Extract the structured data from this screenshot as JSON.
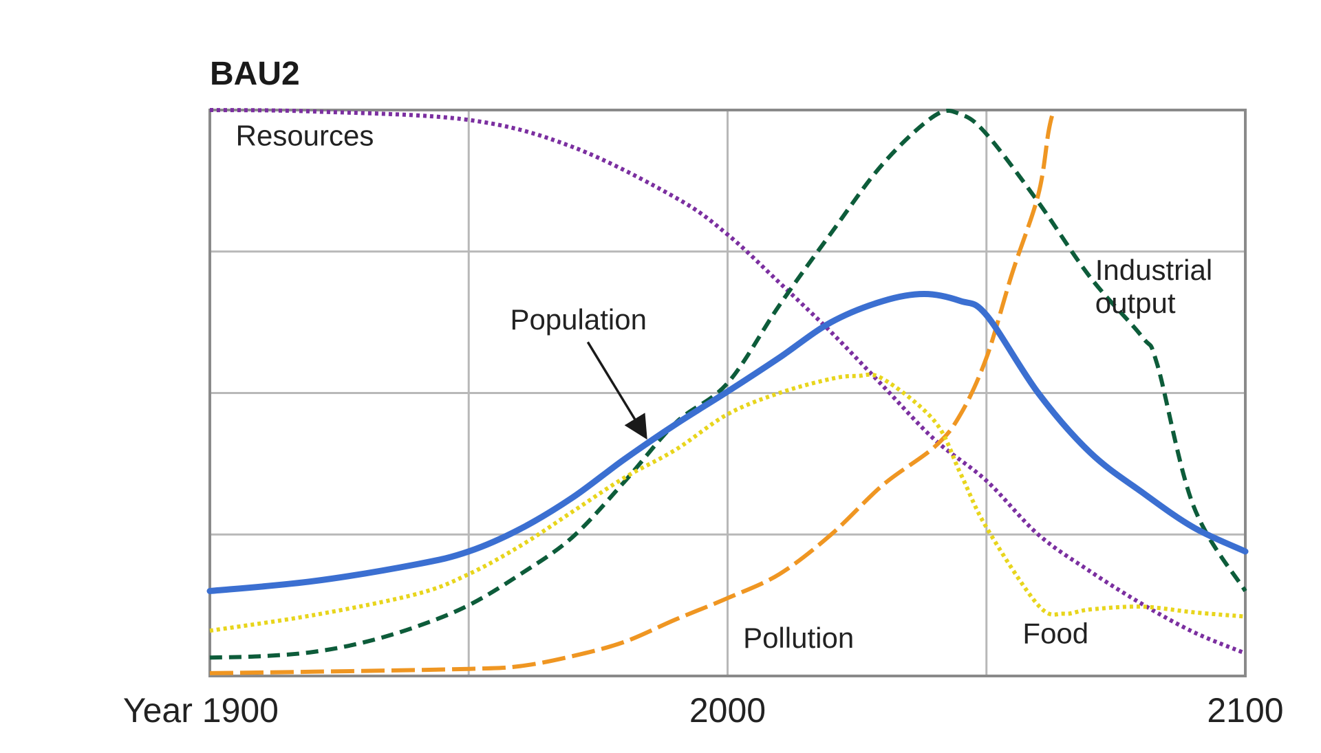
{
  "chart_data": {
    "type": "line",
    "title": "BAU2",
    "xlabel": "",
    "ylabel": "",
    "xlim": [
      1900,
      2100
    ],
    "ylim": [
      0,
      4
    ],
    "grid": true,
    "x_gridlines": [
      1950,
      2000,
      2050
    ],
    "y_gridlines": [
      1,
      2,
      3
    ],
    "x_tick_labels": [
      {
        "value": 1900,
        "text": "Year 1900"
      },
      {
        "value": 2000,
        "text": "2000"
      },
      {
        "value": 2100,
        "text": "2100"
      }
    ],
    "series": [
      {
        "name": "Resources",
        "color": "#7b2fa0",
        "style": "dotted",
        "label_at": [
          1905,
          3.75
        ],
        "points": [
          [
            1900,
            4.0
          ],
          [
            1920,
            3.99
          ],
          [
            1950,
            3.93
          ],
          [
            1970,
            3.74
          ],
          [
            1990,
            3.38
          ],
          [
            2000,
            3.12
          ],
          [
            2010,
            2.78
          ],
          [
            2020,
            2.43
          ],
          [
            2030,
            2.05
          ],
          [
            2040,
            1.67
          ],
          [
            2050,
            1.38
          ],
          [
            2060,
            1.0
          ],
          [
            2070,
            0.74
          ],
          [
            2080,
            0.51
          ],
          [
            2090,
            0.31
          ],
          [
            2100,
            0.16
          ]
        ]
      },
      {
        "name": "Industrial output",
        "color": "#0d5c3a",
        "style": "dashed",
        "label_at": [
          2071,
          2.8
        ],
        "points": [
          [
            1900,
            0.13
          ],
          [
            1910,
            0.14
          ],
          [
            1920,
            0.17
          ],
          [
            1930,
            0.24
          ],
          [
            1940,
            0.35
          ],
          [
            1950,
            0.5
          ],
          [
            1960,
            0.72
          ],
          [
            1970,
            0.98
          ],
          [
            1980,
            1.37
          ],
          [
            1990,
            1.79
          ],
          [
            2000,
            2.07
          ],
          [
            2010,
            2.62
          ],
          [
            2020,
            3.13
          ],
          [
            2030,
            3.62
          ],
          [
            2040,
            3.96
          ],
          [
            2045,
            3.97
          ],
          [
            2050,
            3.83
          ],
          [
            2060,
            3.35
          ],
          [
            2070,
            2.82
          ],
          [
            2080,
            2.4
          ],
          [
            2083,
            2.2
          ],
          [
            2090,
            1.2
          ],
          [
            2100,
            0.6
          ]
        ]
      },
      {
        "name": "Population",
        "color": "#3b6fd1",
        "style": "solid",
        "label_at": [
          1958,
          2.45
        ],
        "arrow_from": [
          1973,
          2.36
        ],
        "arrow_to": [
          1984,
          1.7
        ],
        "points": [
          [
            1900,
            0.6
          ],
          [
            1920,
            0.67
          ],
          [
            1940,
            0.79
          ],
          [
            1950,
            0.88
          ],
          [
            1960,
            1.04
          ],
          [
            1970,
            1.26
          ],
          [
            1980,
            1.53
          ],
          [
            1990,
            1.78
          ],
          [
            2000,
            2.01
          ],
          [
            2010,
            2.25
          ],
          [
            2020,
            2.5
          ],
          [
            2030,
            2.65
          ],
          [
            2038,
            2.7
          ],
          [
            2045,
            2.65
          ],
          [
            2050,
            2.55
          ],
          [
            2060,
            2.0
          ],
          [
            2070,
            1.58
          ],
          [
            2080,
            1.3
          ],
          [
            2090,
            1.05
          ],
          [
            2100,
            0.88
          ]
        ]
      },
      {
        "name": "Food",
        "color": "#e8d51c",
        "style": "dotted",
        "label_at": [
          2057,
          0.23
        ],
        "points": [
          [
            1900,
            0.32
          ],
          [
            1920,
            0.43
          ],
          [
            1940,
            0.58
          ],
          [
            1950,
            0.72
          ],
          [
            1960,
            0.92
          ],
          [
            1970,
            1.16
          ],
          [
            1980,
            1.4
          ],
          [
            1990,
            1.6
          ],
          [
            2000,
            1.85
          ],
          [
            2010,
            2.0
          ],
          [
            2020,
            2.1
          ],
          [
            2025,
            2.12
          ],
          [
            2030,
            2.1
          ],
          [
            2040,
            1.8
          ],
          [
            2045,
            1.43
          ],
          [
            2050,
            1.05
          ],
          [
            2060,
            0.5
          ],
          [
            2065,
            0.44
          ],
          [
            2070,
            0.47
          ],
          [
            2080,
            0.49
          ],
          [
            2090,
            0.45
          ],
          [
            2100,
            0.42
          ]
        ]
      },
      {
        "name": "Pollution",
        "color": "#ef9622",
        "style": "longdash",
        "label_at": [
          2003,
          0.2
        ],
        "points": [
          [
            1900,
            0.02
          ],
          [
            1920,
            0.03
          ],
          [
            1950,
            0.05
          ],
          [
            1960,
            0.07
          ],
          [
            1970,
            0.14
          ],
          [
            1980,
            0.24
          ],
          [
            1990,
            0.4
          ],
          [
            2000,
            0.55
          ],
          [
            2010,
            0.72
          ],
          [
            2020,
            1.0
          ],
          [
            2030,
            1.35
          ],
          [
            2040,
            1.62
          ],
          [
            2045,
            1.85
          ],
          [
            2050,
            2.25
          ],
          [
            2055,
            2.85
          ],
          [
            2060,
            3.4
          ],
          [
            2062,
            3.85
          ],
          [
            2063,
            4.0
          ]
        ]
      }
    ]
  }
}
